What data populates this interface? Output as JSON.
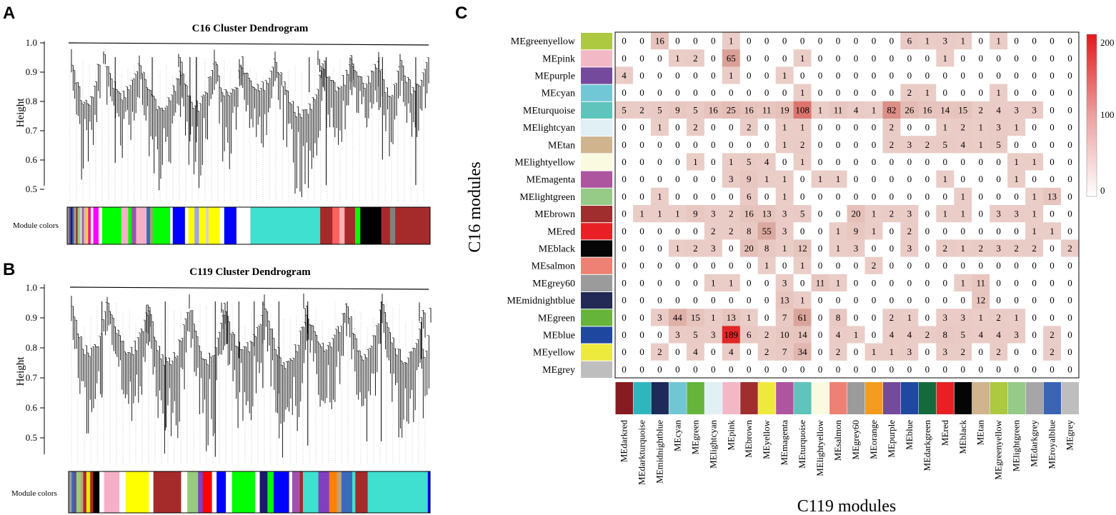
{
  "panels": {
    "a": "A",
    "b": "B",
    "c": "C"
  },
  "dendro_a": {
    "title": "C16 Cluster Dendrogram",
    "ylabel": "Height",
    "ticks": [
      "1.0",
      "0.9",
      "0.8",
      "0.7",
      "0.6",
      "0.5"
    ],
    "module_label": "Module colors",
    "colors": [
      "#9a9a9a",
      "#6b4a8c",
      "#1a1a6e",
      "#3a6bb8",
      "#c3a07a",
      "#8c3a3a",
      "#98cc7a",
      "#d6d6e0",
      "#a85a9a",
      "#e0b0c0",
      "#e8e800",
      "#ff1493",
      "#f0f0f0",
      "#ff00ff",
      "#ffffff",
      "#00ff00",
      "#f5b0c8",
      "#00ff00",
      "#a050b0",
      "#f5b0c8",
      "#3a6bb8",
      "#a89a70",
      "#00ff00",
      "#ffffff",
      "#0000ff",
      "#ffffff",
      "#ffff00",
      "#a0a0ff",
      "#ffff00",
      "#d0d0d0",
      "#ffff00",
      "#ffffff",
      "#0000ff",
      "#ffffff",
      "#40e0d0",
      "#a52a2a",
      "#ff6060",
      "#ffb0b0",
      "#a52a2a",
      "#00ff00",
      "#000000",
      "#a52a2a",
      "#808080",
      "#a52a2a"
    ],
    "widths": [
      2,
      2,
      2,
      2,
      2,
      2,
      3,
      2,
      2,
      3,
      2,
      3,
      3,
      6,
      4,
      22,
      8,
      4,
      5,
      12,
      4,
      3,
      20,
      3,
      14,
      4,
      7,
      5,
      8,
      3,
      13,
      5,
      14,
      16,
      80,
      14,
      8,
      6,
      12,
      6,
      24,
      10,
      6,
      40
    ]
  },
  "dendro_b": {
    "title": "C119 Cluster Dendrogram",
    "ylabel": "Height",
    "ticks": [
      "1.0",
      "0.9",
      "0.8",
      "0.7",
      "0.6",
      "0.5"
    ],
    "module_label": "Module colors",
    "colors": [
      "#9a9a9a",
      "#3a6bb8",
      "#6b4a8c",
      "#98cc7a",
      "#c3a07a",
      "#a52a2a",
      "#e8e800",
      "#a52a2a",
      "#000000",
      "#ffffff",
      "#f5b0c8",
      "#ffffff",
      "#ffff00",
      "#ffffff",
      "#a52a2a",
      "#ffffff",
      "#98cc7a",
      "#8040c0",
      "#ff0000",
      "#ffffff",
      "#0000ff",
      "#ffffff",
      "#00ff00",
      "#ffffff",
      "#1a1a6e",
      "#00ff00",
      "#0000ff",
      "#ffffff",
      "#a050b0",
      "#a52a2a",
      "#40e0d0",
      "#8040c0",
      "#ff8000",
      "#c3a07a",
      "#3a6bb8",
      "#40e0d0",
      "#a52a2a",
      "#40e0d0",
      "#0000ff"
    ],
    "widths": [
      4,
      3,
      3,
      6,
      3,
      4,
      5,
      4,
      8,
      6,
      20,
      8,
      30,
      6,
      36,
      8,
      14,
      6,
      12,
      6,
      12,
      8,
      30,
      6,
      10,
      8,
      20,
      4,
      10,
      4,
      20,
      14,
      10,
      6,
      14,
      4,
      16,
      78,
      3
    ]
  },
  "heatmap": {
    "ylabel": "C16 modules",
    "xlabel": "C119 modules",
    "legend_ticks": [
      "200",
      "100",
      "0"
    ]
  },
  "chart_data": [
    {
      "type": "dendrogram",
      "title": "C16 Cluster Dendrogram",
      "ylabel": "Height",
      "ylim": [
        0.45,
        1.0
      ],
      "extra_label": "Module colors"
    },
    {
      "type": "dendrogram",
      "title": "C119 Cluster Dendrogram",
      "ylabel": "Height",
      "ylim": [
        0.45,
        1.0
      ],
      "extra_label": "Module colors"
    },
    {
      "type": "heatmap",
      "ylabel": "C16 modules",
      "xlabel": "C119 modules",
      "color_range": [
        0,
        200
      ],
      "rows": [
        "MEgreenyellow",
        "MEpink",
        "MEpurple",
        "MEcyan",
        "MEturquoise",
        "MElightcyan",
        "MEtan",
        "MElightyellow",
        "MEmagenta",
        "MElightgreen",
        "MEbrown",
        "MEred",
        "MEblack",
        "MEsalmon",
        "MEgrey60",
        "MEmidnightblue",
        "MEgreen",
        "MEblue",
        "MEyellow",
        "MEgrey"
      ],
      "row_colors": [
        "#adc93f",
        "#f2b8c6",
        "#744a9c",
        "#72c7d6",
        "#5fc4bb",
        "#e0f0f4",
        "#cfb48e",
        "#fafae0",
        "#ad559f",
        "#96ca87",
        "#a02e2e",
        "#e82026",
        "#050505",
        "#ee8173",
        "#9b9b9b",
        "#222a55",
        "#66b43a",
        "#1f48a0",
        "#eeea3d",
        "#bebebe"
      ],
      "columns": [
        "MEdarkred",
        "MEdarkturquoise",
        "MEmidnightblue",
        "MEcyan",
        "MEgreen",
        "MElightcyan",
        "MEpink",
        "MEbrown",
        "MEyellow",
        "MEmagenta",
        "MEturquoise",
        "MElightyellow",
        "MEsalmon",
        "MEgrey60",
        "MEorange",
        "MEpurple",
        "MEblue",
        "MEdarkgreen",
        "MEred",
        "MEblack",
        "MEtan",
        "MEgreenyellow",
        "MElightgreen",
        "MEdarkgrey",
        "MEroyalblue",
        "MEgrey"
      ],
      "column_colors": [
        "#871b22",
        "#2fb6bd",
        "#1e2a5a",
        "#70c6d4",
        "#66b43a",
        "#e0f0f5",
        "#f2b8c6",
        "#a02e2e",
        "#eeea3d",
        "#ad559f",
        "#5fc4bb",
        "#fafae0",
        "#ee8173",
        "#9b9b9b",
        "#f39c1e",
        "#744a9c",
        "#1f48a0",
        "#156a3c",
        "#e82026",
        "#050505",
        "#cfb48e",
        "#adc93f",
        "#96ca87",
        "#a6a6a6",
        "#3b64b3",
        "#bebebe"
      ],
      "values": [
        [
          0,
          0,
          16,
          0,
          0,
          0,
          1,
          0,
          0,
          0,
          0,
          0,
          0,
          0,
          0,
          0,
          6,
          1,
          3,
          1,
          0,
          1,
          0,
          0,
          0,
          0
        ],
        [
          0,
          0,
          0,
          1,
          2,
          0,
          65,
          0,
          0,
          0,
          1,
          0,
          0,
          0,
          0,
          0,
          0,
          0,
          1,
          0,
          0,
          0,
          0,
          0,
          0,
          0
        ],
        [
          4,
          0,
          0,
          0,
          0,
          0,
          1,
          0,
          0,
          1,
          0,
          0,
          0,
          0,
          0,
          0,
          0,
          0,
          0,
          0,
          0,
          0,
          0,
          0,
          0,
          0
        ],
        [
          0,
          0,
          0,
          0,
          0,
          0,
          0,
          0,
          0,
          0,
          1,
          0,
          0,
          0,
          0,
          0,
          2,
          1,
          0,
          0,
          0,
          1,
          0,
          0,
          0,
          0
        ],
        [
          5,
          2,
          5,
          9,
          5,
          16,
          25,
          16,
          11,
          19,
          108,
          1,
          11,
          4,
          1,
          82,
          26,
          16,
          14,
          15,
          2,
          4,
          3,
          3,
          0,
          0
        ],
        [
          0,
          0,
          1,
          0,
          2,
          0,
          0,
          2,
          0,
          1,
          1,
          0,
          0,
          0,
          0,
          2,
          0,
          0,
          1,
          2,
          1,
          3,
          1,
          0,
          0,
          0
        ],
        [
          0,
          0,
          0,
          0,
          0,
          0,
          0,
          0,
          0,
          1,
          2,
          0,
          0,
          0,
          0,
          2,
          3,
          2,
          5,
          4,
          1,
          5,
          0,
          0,
          0,
          0
        ],
        [
          0,
          0,
          0,
          0,
          1,
          0,
          1,
          5,
          4,
          0,
          1,
          0,
          0,
          0,
          0,
          0,
          0,
          0,
          0,
          0,
          0,
          0,
          1,
          1,
          0,
          0
        ],
        [
          0,
          0,
          0,
          0,
          0,
          0,
          3,
          9,
          1,
          1,
          0,
          1,
          1,
          0,
          0,
          0,
          0,
          0,
          1,
          0,
          0,
          0,
          1,
          0,
          0,
          0
        ],
        [
          0,
          0,
          1,
          0,
          0,
          0,
          0,
          6,
          0,
          1,
          0,
          0,
          0,
          0,
          0,
          0,
          0,
          0,
          0,
          1,
          0,
          0,
          0,
          1,
          13,
          0
        ],
        [
          0,
          1,
          1,
          1,
          9,
          3,
          2,
          16,
          13,
          3,
          5,
          0,
          0,
          20,
          1,
          2,
          3,
          0,
          1,
          1,
          0,
          3,
          3,
          1,
          0,
          0
        ],
        [
          0,
          0,
          0,
          0,
          0,
          2,
          2,
          8,
          55,
          3,
          0,
          0,
          1,
          9,
          1,
          0,
          2,
          0,
          0,
          0,
          0,
          0,
          0,
          1,
          1,
          0
        ],
        [
          0,
          0,
          0,
          1,
          2,
          3,
          0,
          20,
          8,
          1,
          12,
          0,
          1,
          3,
          0,
          0,
          3,
          0,
          2,
          1,
          2,
          3,
          2,
          2,
          0,
          2
        ],
        [
          0,
          0,
          0,
          0,
          0,
          0,
          0,
          0,
          1,
          0,
          1,
          0,
          0,
          0,
          2,
          0,
          0,
          0,
          0,
          0,
          0,
          0,
          0,
          0,
          0,
          0
        ],
        [
          0,
          0,
          0,
          0,
          0,
          1,
          1,
          0,
          0,
          3,
          0,
          11,
          1,
          0,
          0,
          0,
          0,
          0,
          0,
          1,
          11,
          0,
          0,
          0,
          0,
          0
        ],
        [
          0,
          0,
          0,
          0,
          0,
          0,
          0,
          0,
          0,
          13,
          1,
          0,
          0,
          0,
          0,
          0,
          0,
          0,
          0,
          0,
          12,
          0,
          0,
          0,
          0,
          0
        ],
        [
          0,
          0,
          3,
          44,
          15,
          1,
          13,
          1,
          0,
          7,
          61,
          0,
          8,
          0,
          0,
          2,
          1,
          0,
          3,
          3,
          1,
          2,
          1,
          0,
          0,
          0
        ],
        [
          0,
          0,
          0,
          3,
          5,
          3,
          189,
          6,
          2,
          10,
          14,
          0,
          4,
          1,
          0,
          4,
          4,
          2,
          8,
          5,
          4,
          4,
          3,
          0,
          2,
          0
        ],
        [
          0,
          0,
          2,
          0,
          4,
          0,
          4,
          0,
          2,
          7,
          34,
          0,
          2,
          0,
          1,
          1,
          3,
          0,
          3,
          2,
          0,
          2,
          0,
          0,
          2,
          0
        ],
        [
          0,
          0,
          0,
          0,
          0,
          0,
          0,
          0,
          0,
          0,
          0,
          0,
          0,
          0,
          0,
          0,
          0,
          0,
          0,
          0,
          0,
          0,
          0,
          0,
          0,
          0
        ]
      ]
    }
  ]
}
